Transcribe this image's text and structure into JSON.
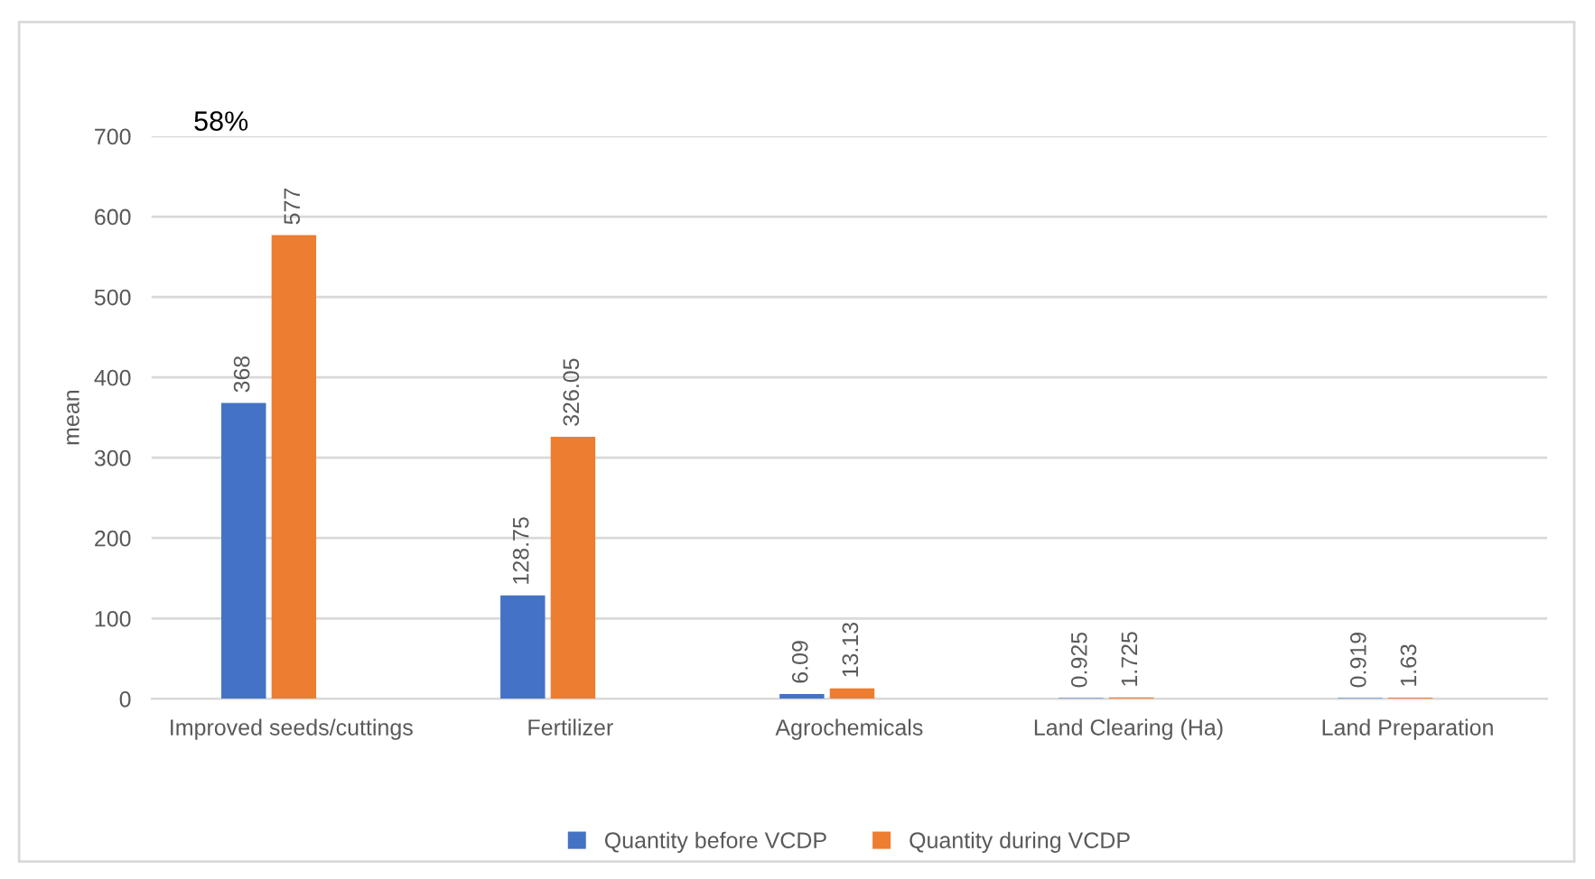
{
  "chart_data": {
    "type": "bar",
    "ylabel": "mean",
    "categories": [
      "Improved seeds/cuttings",
      "Fertilizer",
      "Agrochemicals",
      "Land Clearing (Ha)",
      "Land Preparation"
    ],
    "series": [
      {
        "name": "Quantity before VCDP",
        "color": "#4472c4",
        "values": [
          368,
          128.75,
          6.09,
          0.925,
          0.919
        ]
      },
      {
        "name": "Quantity during VCDP",
        "color": "#ed7d31",
        "values": [
          577,
          326.05,
          13.13,
          1.725,
          1.63
        ]
      }
    ],
    "ylim": [
      0,
      700
    ],
    "yticks": [
      0,
      100,
      200,
      300,
      400,
      500,
      600,
      700
    ],
    "grid": "y",
    "legend": "bottom",
    "data_labels": true,
    "annotations": [
      "58%"
    ]
  }
}
